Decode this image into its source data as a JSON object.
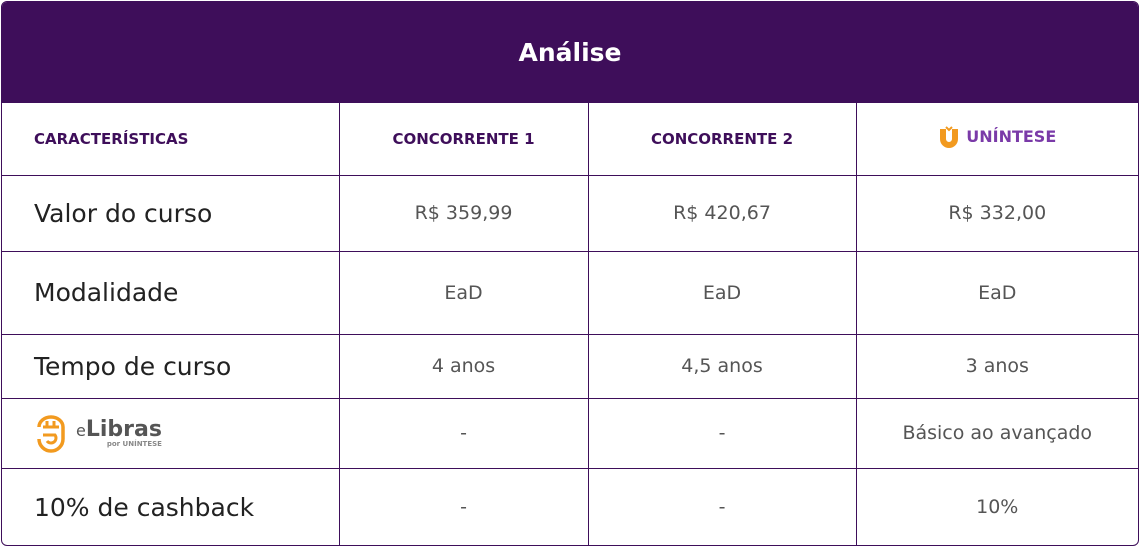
{
  "title": "Análise",
  "headers": [
    "CARACTERÍSTICAS",
    "CONCORRENTE 1",
    "CONCORRENTE 2",
    "UNÍNTESE"
  ],
  "rows": [
    {
      "label": "Valor do curso",
      "values": [
        "R$ 359,99",
        "R$ 420,67",
        "R$ 332,00"
      ]
    },
    {
      "label": "Modalidade",
      "values": [
        "EaD",
        "EaD",
        "EaD"
      ]
    },
    {
      "label": "Tempo de curso",
      "values": [
        "4 anos",
        "4,5 anos",
        "3 anos"
      ]
    },
    {
      "label": "eLibras",
      "sublabel": "por UNÍNTESE",
      "values": [
        "-",
        "-",
        "Básico ao avançado"
      ]
    },
    {
      "label": "10% de cashback",
      "values": [
        "-",
        "-",
        "10%"
      ]
    }
  ],
  "colors": {
    "primary": "#3e0e5a",
    "logo_orange": "#f29a1f",
    "logo_purple": "#7a3aa8"
  }
}
